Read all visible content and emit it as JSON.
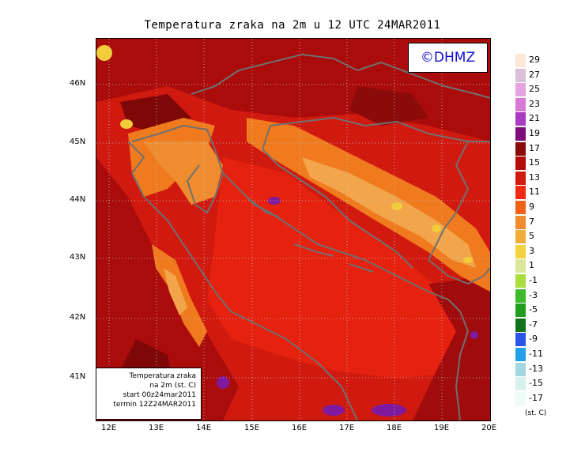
{
  "title": "Temperatura zraka na 2m u 12 UTC 24MAR2011",
  "copyright": "©DHMZ",
  "info_box": {
    "line1": "Temperatura zraka",
    "line2": "na 2m (st. C)",
    "line3": "start 00z24mar2011",
    "line4": "termin 12Z24MAR2011"
  },
  "lat_labels": [
    "46N",
    "45N",
    "44N",
    "43N",
    "42N",
    "41N"
  ],
  "lon_labels": [
    "12E",
    "13E",
    "14E",
    "15E",
    "16E",
    "17E",
    "18E",
    "19E",
    "20E"
  ],
  "legend": {
    "unit": "(st. C)",
    "labels": [
      "29",
      "27",
      "25",
      "23",
      "21",
      "19",
      "17",
      "15",
      "13",
      "11",
      "9",
      "7",
      "5",
      "3",
      "1",
      "-1",
      "-3",
      "-5",
      "-7",
      "-9",
      "-11",
      "-13",
      "-15",
      "-17"
    ],
    "colors": [
      "#fbe9d6",
      "#d9bfd8",
      "#e6a3e1",
      "#d77ad6",
      "#a93cc0",
      "#7d0d7a",
      "#8b0a0a",
      "#b40b0b",
      "#d31a0e",
      "#f52a12",
      "#f36018",
      "#ee8c2f",
      "#f0ad3a",
      "#f2d33f",
      "#dce69a",
      "#a9dc3c",
      "#3fba2c",
      "#229e1f",
      "#11741b",
      "#2b55e6",
      "#22a0ea",
      "#a5d7e2",
      "#d8f0ee",
      "#eefcf5"
    ]
  },
  "map_colors": {
    "base": "#d11a0f",
    "sea_warm": "#e5210f",
    "mountain_orange": "#f07a1e",
    "dark_red": "#aa0c0c",
    "very_dark": "#7e0808",
    "purple": "#7f1aa0",
    "yellow": "#f2cc3a",
    "light_orange": "#f2a54a",
    "border": "#707070"
  }
}
